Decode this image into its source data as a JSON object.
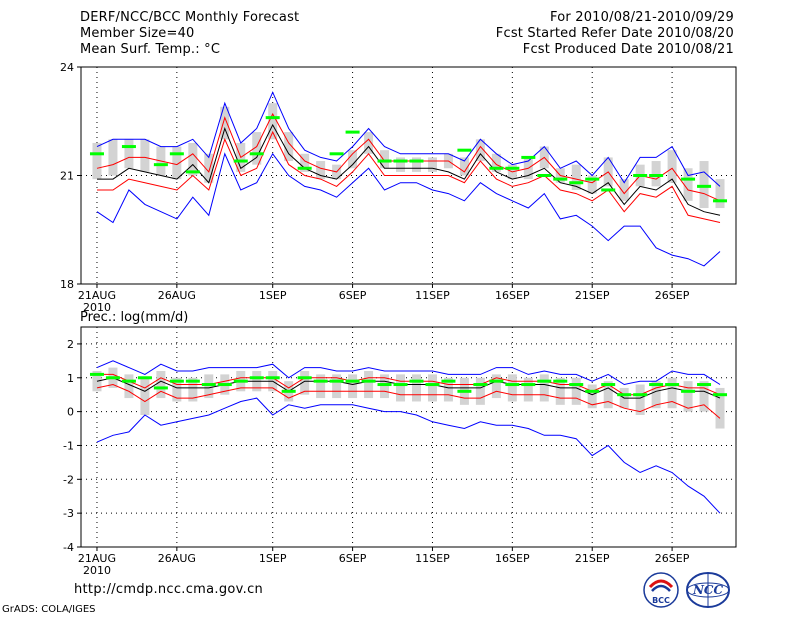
{
  "header": {
    "left": [
      "DERF/NCC/BCC Monthly Forecast",
      "Member Size=40",
      "Mean Surf. Temp.: °C"
    ],
    "right": [
      "For 2010/08/21-2010/09/29",
      "Fcst Started Refer Date 2010/08/20",
      "Fcst Produced Date 2010/08/21"
    ]
  },
  "precip_label": "Prec.: log(mm/d)",
  "footer": {
    "url": "http://cmdp.ncc.cma.gov.cn",
    "credit": "GrADS: COLA/IGES"
  },
  "logos": {
    "bcc": "BCC",
    "ncc": "NCC"
  },
  "colors": {
    "envelope": "#0000ff",
    "spread": "#ff0000",
    "mean": "#000000",
    "median": "#00ff00",
    "box": "#d3d3d3"
  },
  "chart_data": [
    {
      "type": "line",
      "title": "Mean Surf. Temp.: °C",
      "ylim": [
        18,
        24
      ],
      "yticks": [
        "18",
        "21",
        "24"
      ],
      "ytick_values": [
        18,
        21,
        24
      ],
      "xlim": [
        0,
        41
      ],
      "xticks": [
        "21AUG",
        "26AUG",
        "1SEP",
        "6SEP",
        "11SEP",
        "16SEP",
        "21SEP",
        "26SEP"
      ],
      "xtick_positions": [
        1,
        6,
        12,
        17,
        22,
        27,
        32,
        37
      ],
      "x_sublabel": "2010",
      "x": [
        1,
        2,
        3,
        4,
        5,
        6,
        7,
        8,
        9,
        10,
        11,
        12,
        13,
        14,
        15,
        16,
        17,
        18,
        19,
        20,
        21,
        22,
        23,
        24,
        25,
        26,
        27,
        28,
        29,
        30,
        31,
        32,
        33,
        34,
        35,
        36,
        37,
        38,
        39,
        40
      ],
      "series": [
        {
          "name": "max",
          "values": [
            21.8,
            22.0,
            22.0,
            22.0,
            21.8,
            21.8,
            22.0,
            21.5,
            23.0,
            21.9,
            22.3,
            23.3,
            22.3,
            21.7,
            21.5,
            21.4,
            21.8,
            22.3,
            21.8,
            21.6,
            21.6,
            21.6,
            21.6,
            21.4,
            22.0,
            21.6,
            21.3,
            21.4,
            21.8,
            21.2,
            21.4,
            21.0,
            21.5,
            20.8,
            21.5,
            21.5,
            21.8,
            21.0,
            21.1,
            20.7
          ]
        },
        {
          "name": "upper",
          "values": [
            21.2,
            21.3,
            21.5,
            21.5,
            21.4,
            21.3,
            21.6,
            21.1,
            22.6,
            21.5,
            21.8,
            22.7,
            21.9,
            21.4,
            21.2,
            21.1,
            21.6,
            22.0,
            21.4,
            21.4,
            21.4,
            21.4,
            21.4,
            21.1,
            21.8,
            21.3,
            21.1,
            21.2,
            21.5,
            21.0,
            20.9,
            20.8,
            21.1,
            20.5,
            21.0,
            20.9,
            21.2,
            20.6,
            20.5,
            20.3
          ]
        },
        {
          "name": "mean",
          "values": [
            20.9,
            20.9,
            21.2,
            21.1,
            21.0,
            20.9,
            21.3,
            20.8,
            22.3,
            21.2,
            21.5,
            22.4,
            21.6,
            21.2,
            21.0,
            20.9,
            21.3,
            21.8,
            21.2,
            21.2,
            21.2,
            21.2,
            21.1,
            20.9,
            21.6,
            21.1,
            20.9,
            21.0,
            21.2,
            20.8,
            20.7,
            20.5,
            20.8,
            20.2,
            20.7,
            20.6,
            20.9,
            20.2,
            20.0,
            19.9
          ]
        },
        {
          "name": "lower",
          "values": [
            20.6,
            20.6,
            20.9,
            20.8,
            20.7,
            20.6,
            21.0,
            20.6,
            22.0,
            21.0,
            21.2,
            22.2,
            21.3,
            21.0,
            20.9,
            20.7,
            21.1,
            21.6,
            21.0,
            21.0,
            21.0,
            21.0,
            21.0,
            20.8,
            21.4,
            20.9,
            20.7,
            20.8,
            21.0,
            20.6,
            20.5,
            20.3,
            20.6,
            20.0,
            20.5,
            20.4,
            20.7,
            19.9,
            19.8,
            19.7
          ]
        },
        {
          "name": "min",
          "values": [
            20.0,
            19.7,
            20.6,
            20.2,
            20.0,
            19.8,
            20.4,
            19.9,
            21.6,
            20.6,
            20.8,
            21.6,
            21.0,
            20.7,
            20.6,
            20.4,
            20.8,
            21.2,
            20.6,
            20.8,
            20.8,
            20.6,
            20.5,
            20.3,
            20.8,
            20.5,
            20.3,
            20.1,
            20.5,
            19.8,
            19.9,
            19.6,
            19.2,
            19.6,
            19.6,
            19.0,
            18.8,
            18.7,
            18.5,
            18.9
          ]
        },
        {
          "name": "median",
          "values": [
            21.6,
            null,
            21.8,
            null,
            21.3,
            21.6,
            21.1,
            null,
            null,
            21.4,
            21.6,
            22.6,
            null,
            21.2,
            null,
            21.6,
            22.2,
            null,
            21.4,
            21.4,
            21.4,
            null,
            null,
            21.7,
            null,
            21.2,
            21.2,
            21.5,
            21.0,
            20.9,
            20.8,
            20.9,
            20.6,
            null,
            21.0,
            21.0,
            null,
            20.9,
            20.7,
            20.3
          ]
        },
        {
          "name": "box_low",
          "values": [
            20.9,
            21.0,
            21.2,
            21.1,
            21.0,
            20.9,
            21.0,
            20.8,
            22.0,
            21.1,
            21.3,
            22.0,
            21.4,
            21.1,
            20.9,
            20.9,
            21.2,
            21.6,
            21.2,
            21.1,
            21.1,
            21.1,
            21.2,
            21.0,
            21.4,
            21.1,
            20.9,
            20.9,
            21.2,
            20.8,
            20.6,
            20.5,
            20.7,
            20.3,
            20.7,
            20.7,
            20.8,
            20.3,
            20.1,
            20.1
          ]
        },
        {
          "name": "box_high",
          "values": [
            21.9,
            22.0,
            22.0,
            22.0,
            21.8,
            21.8,
            21.9,
            21.6,
            22.9,
            21.9,
            22.2,
            23.0,
            22.2,
            21.6,
            21.4,
            21.3,
            21.7,
            22.2,
            21.7,
            21.5,
            21.5,
            21.5,
            21.6,
            21.5,
            22.0,
            21.6,
            21.3,
            21.5,
            21.8,
            21.2,
            21.3,
            21.0,
            21.5,
            20.9,
            21.3,
            21.4,
            21.7,
            21.2,
            21.4,
            20.9
          ]
        }
      ]
    },
    {
      "type": "line",
      "title": "Prec.: log(mm/d)",
      "ylim": [
        -4,
        2.5
      ],
      "yticks": [
        "-4",
        "-3",
        "-2",
        "-1",
        "0",
        "1",
        "2"
      ],
      "ytick_values": [
        -4,
        -3,
        -2,
        -1,
        0,
        1,
        2
      ],
      "xlim": [
        0,
        41
      ],
      "xticks": [
        "21AUG",
        "26AUG",
        "1SEP",
        "6SEP",
        "11SEP",
        "16SEP",
        "21SEP",
        "26SEP"
      ],
      "xtick_positions": [
        1,
        6,
        12,
        17,
        22,
        27,
        32,
        37
      ],
      "x_sublabel": "2010",
      "x": [
        1,
        2,
        3,
        4,
        5,
        6,
        7,
        8,
        9,
        10,
        11,
        12,
        13,
        14,
        15,
        16,
        17,
        18,
        19,
        20,
        21,
        22,
        23,
        24,
        25,
        26,
        27,
        28,
        29,
        30,
        31,
        32,
        33,
        34,
        35,
        36,
        37,
        38,
        39,
        40
      ],
      "series": [
        {
          "name": "max",
          "values": [
            1.3,
            1.5,
            1.3,
            1.1,
            1.4,
            1.2,
            1.2,
            1.3,
            1.3,
            1.3,
            1.3,
            1.4,
            1.0,
            1.3,
            1.3,
            1.2,
            1.2,
            1.3,
            1.2,
            1.2,
            1.2,
            1.2,
            1.1,
            1.1,
            1.1,
            1.3,
            1.3,
            1.1,
            1.2,
            1.1,
            1.1,
            0.9,
            1.1,
            0.8,
            0.9,
            0.9,
            1.2,
            1.1,
            1.1,
            0.8
          ]
        },
        {
          "name": "upper",
          "values": [
            1.1,
            1.1,
            0.9,
            0.7,
            1.0,
            0.8,
            0.8,
            0.8,
            0.9,
            1.0,
            1.0,
            1.0,
            0.7,
            1.0,
            1.0,
            1.0,
            0.9,
            1.0,
            1.0,
            0.9,
            0.9,
            0.9,
            0.8,
            0.8,
            0.8,
            1.0,
            0.9,
            0.9,
            0.9,
            0.8,
            0.8,
            0.6,
            0.8,
            0.5,
            0.5,
            0.7,
            0.8,
            0.7,
            0.7,
            0.5
          ]
        },
        {
          "name": "mean",
          "values": [
            0.9,
            1.0,
            0.8,
            0.6,
            0.9,
            0.7,
            0.7,
            0.7,
            0.8,
            0.9,
            0.9,
            0.9,
            0.6,
            0.9,
            0.9,
            0.9,
            0.8,
            0.9,
            0.9,
            0.8,
            0.8,
            0.8,
            0.7,
            0.7,
            0.7,
            0.9,
            0.8,
            0.8,
            0.8,
            0.7,
            0.7,
            0.5,
            0.7,
            0.4,
            0.4,
            0.6,
            0.7,
            0.6,
            0.6,
            0.4
          ]
        },
        {
          "name": "lower",
          "values": [
            0.7,
            0.8,
            0.6,
            0.3,
            0.6,
            0.4,
            0.4,
            0.5,
            0.6,
            0.7,
            0.7,
            0.7,
            0.4,
            0.6,
            0.6,
            0.6,
            0.6,
            0.6,
            0.6,
            0.5,
            0.5,
            0.5,
            0.5,
            0.4,
            0.4,
            0.6,
            0.5,
            0.5,
            0.5,
            0.4,
            0.4,
            0.2,
            0.3,
            0.1,
            0.0,
            0.2,
            0.3,
            0.1,
            0.2,
            -0.2
          ]
        },
        {
          "name": "min",
          "values": [
            -0.9,
            -0.7,
            -0.6,
            -0.1,
            -0.4,
            -0.3,
            -0.2,
            -0.1,
            0.1,
            0.3,
            0.4,
            -0.1,
            0.2,
            0.1,
            0.2,
            0.2,
            0.2,
            0.1,
            0.0,
            0.0,
            -0.1,
            -0.3,
            -0.4,
            -0.5,
            -0.3,
            -0.4,
            -0.4,
            -0.5,
            -0.7,
            -0.7,
            -0.8,
            -1.3,
            -1.0,
            -1.5,
            -1.8,
            -1.6,
            -1.8,
            -2.2,
            -2.5,
            -3.0
          ]
        },
        {
          "name": "median",
          "values": [
            1.1,
            1.0,
            0.9,
            1.0,
            0.7,
            0.9,
            0.9,
            0.8,
            0.8,
            0.9,
            1.0,
            1.0,
            0.6,
            1.0,
            0.9,
            0.9,
            0.9,
            0.9,
            0.8,
            0.8,
            0.9,
            0.8,
            0.9,
            0.6,
            0.8,
            0.9,
            0.8,
            0.8,
            0.9,
            0.9,
            0.8,
            0.6,
            0.8,
            0.5,
            0.5,
            0.8,
            0.8,
            0.6,
            0.8,
            0.5
          ]
        },
        {
          "name": "box_low",
          "values": [
            0.6,
            0.7,
            0.4,
            -0.1,
            0.4,
            0.3,
            0.3,
            0.4,
            0.5,
            0.6,
            0.6,
            0.6,
            0.3,
            0.5,
            0.4,
            0.4,
            0.4,
            0.4,
            0.4,
            0.3,
            0.3,
            0.3,
            0.3,
            0.2,
            0.2,
            0.4,
            0.3,
            0.3,
            0.3,
            0.2,
            0.2,
            0.1,
            0.1,
            0.1,
            -0.1,
            0.1,
            0.1,
            0.0,
            0.0,
            -0.5
          ]
        },
        {
          "name": "box_high",
          "values": [
            1.2,
            1.3,
            1.1,
            1.0,
            1.2,
            1.0,
            1.0,
            1.1,
            1.1,
            1.2,
            1.2,
            1.2,
            0.9,
            1.2,
            1.1,
            1.1,
            1.1,
            1.2,
            1.1,
            1.1,
            1.1,
            1.1,
            1.0,
            1.0,
            1.0,
            1.1,
            1.1,
            1.0,
            1.1,
            1.0,
            1.0,
            0.8,
            0.9,
            0.7,
            0.8,
            0.9,
            1.0,
            0.9,
            0.9,
            0.7
          ]
        }
      ]
    }
  ]
}
